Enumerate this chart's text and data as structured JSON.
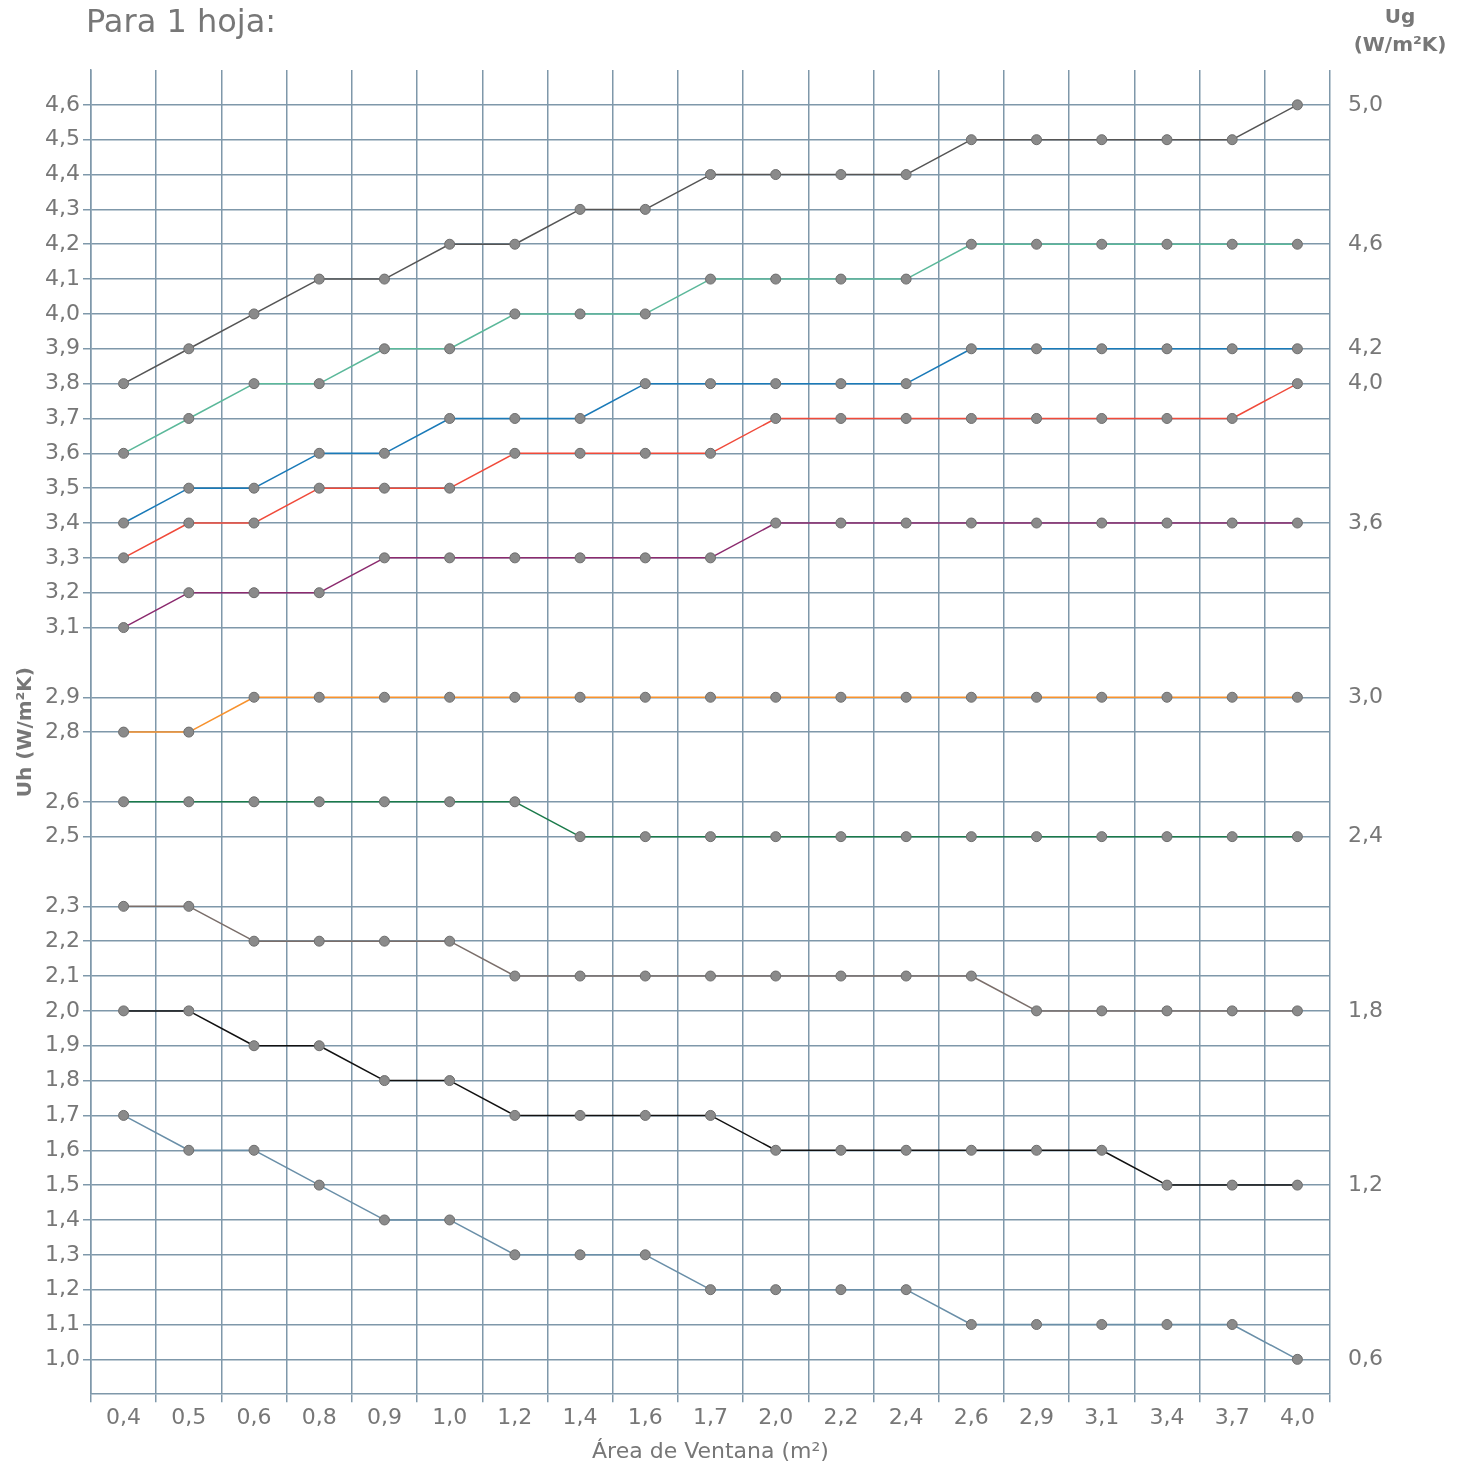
{
  "chart_data": {
    "type": "line",
    "title": "Para 1 hoja:",
    "xlabel": "Área de Ventana (m²)",
    "ylabel": "Uh (W/m²K)",
    "legend_title": "Ug (W/m²K)",
    "categories": [
      "0,4",
      "0,5",
      "0,6",
      "0,8",
      "0,9",
      "1,0",
      "1,2",
      "1,4",
      "1,6",
      "1,7",
      "2,0",
      "2,2",
      "2,4",
      "2,6",
      "2,9",
      "3,1",
      "3,4",
      "3,7",
      "4,0"
    ],
    "ylim": [
      0.9,
      4.7
    ],
    "yticks": [
      {
        "value": 1.0,
        "label": "1,0"
      },
      {
        "value": 1.1,
        "label": "1,1"
      },
      {
        "value": 1.2,
        "label": "1,2"
      },
      {
        "value": 1.3,
        "label": "1,3"
      },
      {
        "value": 1.4,
        "label": "1,4"
      },
      {
        "value": 1.5,
        "label": "1,5"
      },
      {
        "value": 1.6,
        "label": "1,6"
      },
      {
        "value": 1.7,
        "label": "1,7"
      },
      {
        "value": 1.8,
        "label": "1,8"
      },
      {
        "value": 1.9,
        "label": "1,9"
      },
      {
        "value": 2.0,
        "label": "2,0"
      },
      {
        "value": 2.1,
        "label": "2,1"
      },
      {
        "value": 2.2,
        "label": "2,2"
      },
      {
        "value": 2.3,
        "label": "2,3"
      },
      {
        "value": 2.5,
        "label": "2,5"
      },
      {
        "value": 2.6,
        "label": "2,6"
      },
      {
        "value": 2.8,
        "label": "2,8"
      },
      {
        "value": 2.9,
        "label": "2,9"
      },
      {
        "value": 3.1,
        "label": "3,1"
      },
      {
        "value": 3.2,
        "label": "3,2"
      },
      {
        "value": 3.3,
        "label": "3,3"
      },
      {
        "value": 3.4,
        "label": "3,4"
      },
      {
        "value": 3.5,
        "label": "3,5"
      },
      {
        "value": 3.6,
        "label": "3,6"
      },
      {
        "value": 3.7,
        "label": "3,7"
      },
      {
        "value": 3.8,
        "label": "3,8"
      },
      {
        "value": 3.9,
        "label": "3,9"
      },
      {
        "value": 4.0,
        "label": "4,0"
      },
      {
        "value": 4.1,
        "label": "4,1"
      },
      {
        "value": 4.2,
        "label": "4,2"
      },
      {
        "value": 4.3,
        "label": "4,3"
      },
      {
        "value": 4.4,
        "label": "4,4"
      },
      {
        "value": 4.5,
        "label": "4,5"
      },
      {
        "value": 4.6,
        "label": "4,6"
      }
    ],
    "grid": true,
    "marker": "circle",
    "legend": "right",
    "line_style": "solid",
    "series": [
      {
        "name": "5,0",
        "color": "#555555",
        "values": [
          3.8,
          3.9,
          4.0,
          4.1,
          4.1,
          4.2,
          4.2,
          4.3,
          4.3,
          4.4,
          4.4,
          4.4,
          4.4,
          4.5,
          4.5,
          4.5,
          4.5,
          4.5,
          4.6
        ]
      },
      {
        "name": "4,6",
        "color": "#5bb89a",
        "values": [
          3.6,
          3.7,
          3.8,
          3.8,
          3.9,
          3.9,
          4.0,
          4.0,
          4.0,
          4.1,
          4.1,
          4.1,
          4.1,
          4.2,
          4.2,
          4.2,
          4.2,
          4.2,
          4.2
        ]
      },
      {
        "name": "4,2",
        "color": "#1a7ab8",
        "values": [
          3.4,
          3.5,
          3.5,
          3.6,
          3.6,
          3.7,
          3.7,
          3.7,
          3.8,
          3.8,
          3.8,
          3.8,
          3.8,
          3.9,
          3.9,
          3.9,
          3.9,
          3.9,
          3.9
        ]
      },
      {
        "name": "4,0",
        "color": "#f04a3a",
        "values": [
          3.3,
          3.4,
          3.4,
          3.5,
          3.5,
          3.5,
          3.6,
          3.6,
          3.6,
          3.6,
          3.7,
          3.7,
          3.7,
          3.7,
          3.7,
          3.7,
          3.7,
          3.7,
          3.8
        ]
      },
      {
        "name": "3,6",
        "color": "#8b2a6e",
        "values": [
          3.1,
          3.2,
          3.2,
          3.2,
          3.3,
          3.3,
          3.3,
          3.3,
          3.3,
          3.3,
          3.4,
          3.4,
          3.4,
          3.4,
          3.4,
          3.4,
          3.4,
          3.4,
          3.4
        ]
      },
      {
        "name": "3,0",
        "color": "#f7922e",
        "values": [
          2.8,
          2.8,
          2.9,
          2.9,
          2.9,
          2.9,
          2.9,
          2.9,
          2.9,
          2.9,
          2.9,
          2.9,
          2.9,
          2.9,
          2.9,
          2.9,
          2.9,
          2.9,
          2.9
        ]
      },
      {
        "name": "2,4",
        "color": "#1a7a4a",
        "values": [
          2.6,
          2.6,
          2.6,
          2.6,
          2.6,
          2.6,
          2.6,
          2.5,
          2.5,
          2.5,
          2.5,
          2.5,
          2.5,
          2.5,
          2.5,
          2.5,
          2.5,
          2.5,
          2.5
        ]
      },
      {
        "name": "1,8",
        "color": "#7a6e6a",
        "values": [
          2.3,
          2.3,
          2.2,
          2.2,
          2.2,
          2.2,
          2.1,
          2.1,
          2.1,
          2.1,
          2.1,
          2.1,
          2.1,
          2.1,
          2.0,
          2.0,
          2.0,
          2.0,
          2.0
        ]
      },
      {
        "name": "1,2",
        "color": "#111111",
        "values": [
          2.0,
          2.0,
          1.9,
          1.9,
          1.8,
          1.8,
          1.7,
          1.7,
          1.7,
          1.7,
          1.6,
          1.6,
          1.6,
          1.6,
          1.6,
          1.6,
          1.5,
          1.5,
          1.5
        ]
      },
      {
        "name": "0,6",
        "color": "#6a8fa8",
        "values": [
          1.7,
          1.6,
          1.6,
          1.5,
          1.4,
          1.4,
          1.3,
          1.3,
          1.3,
          1.2,
          1.2,
          1.2,
          1.2,
          1.1,
          1.1,
          1.1,
          1.1,
          1.1,
          1.0
        ]
      }
    ]
  }
}
